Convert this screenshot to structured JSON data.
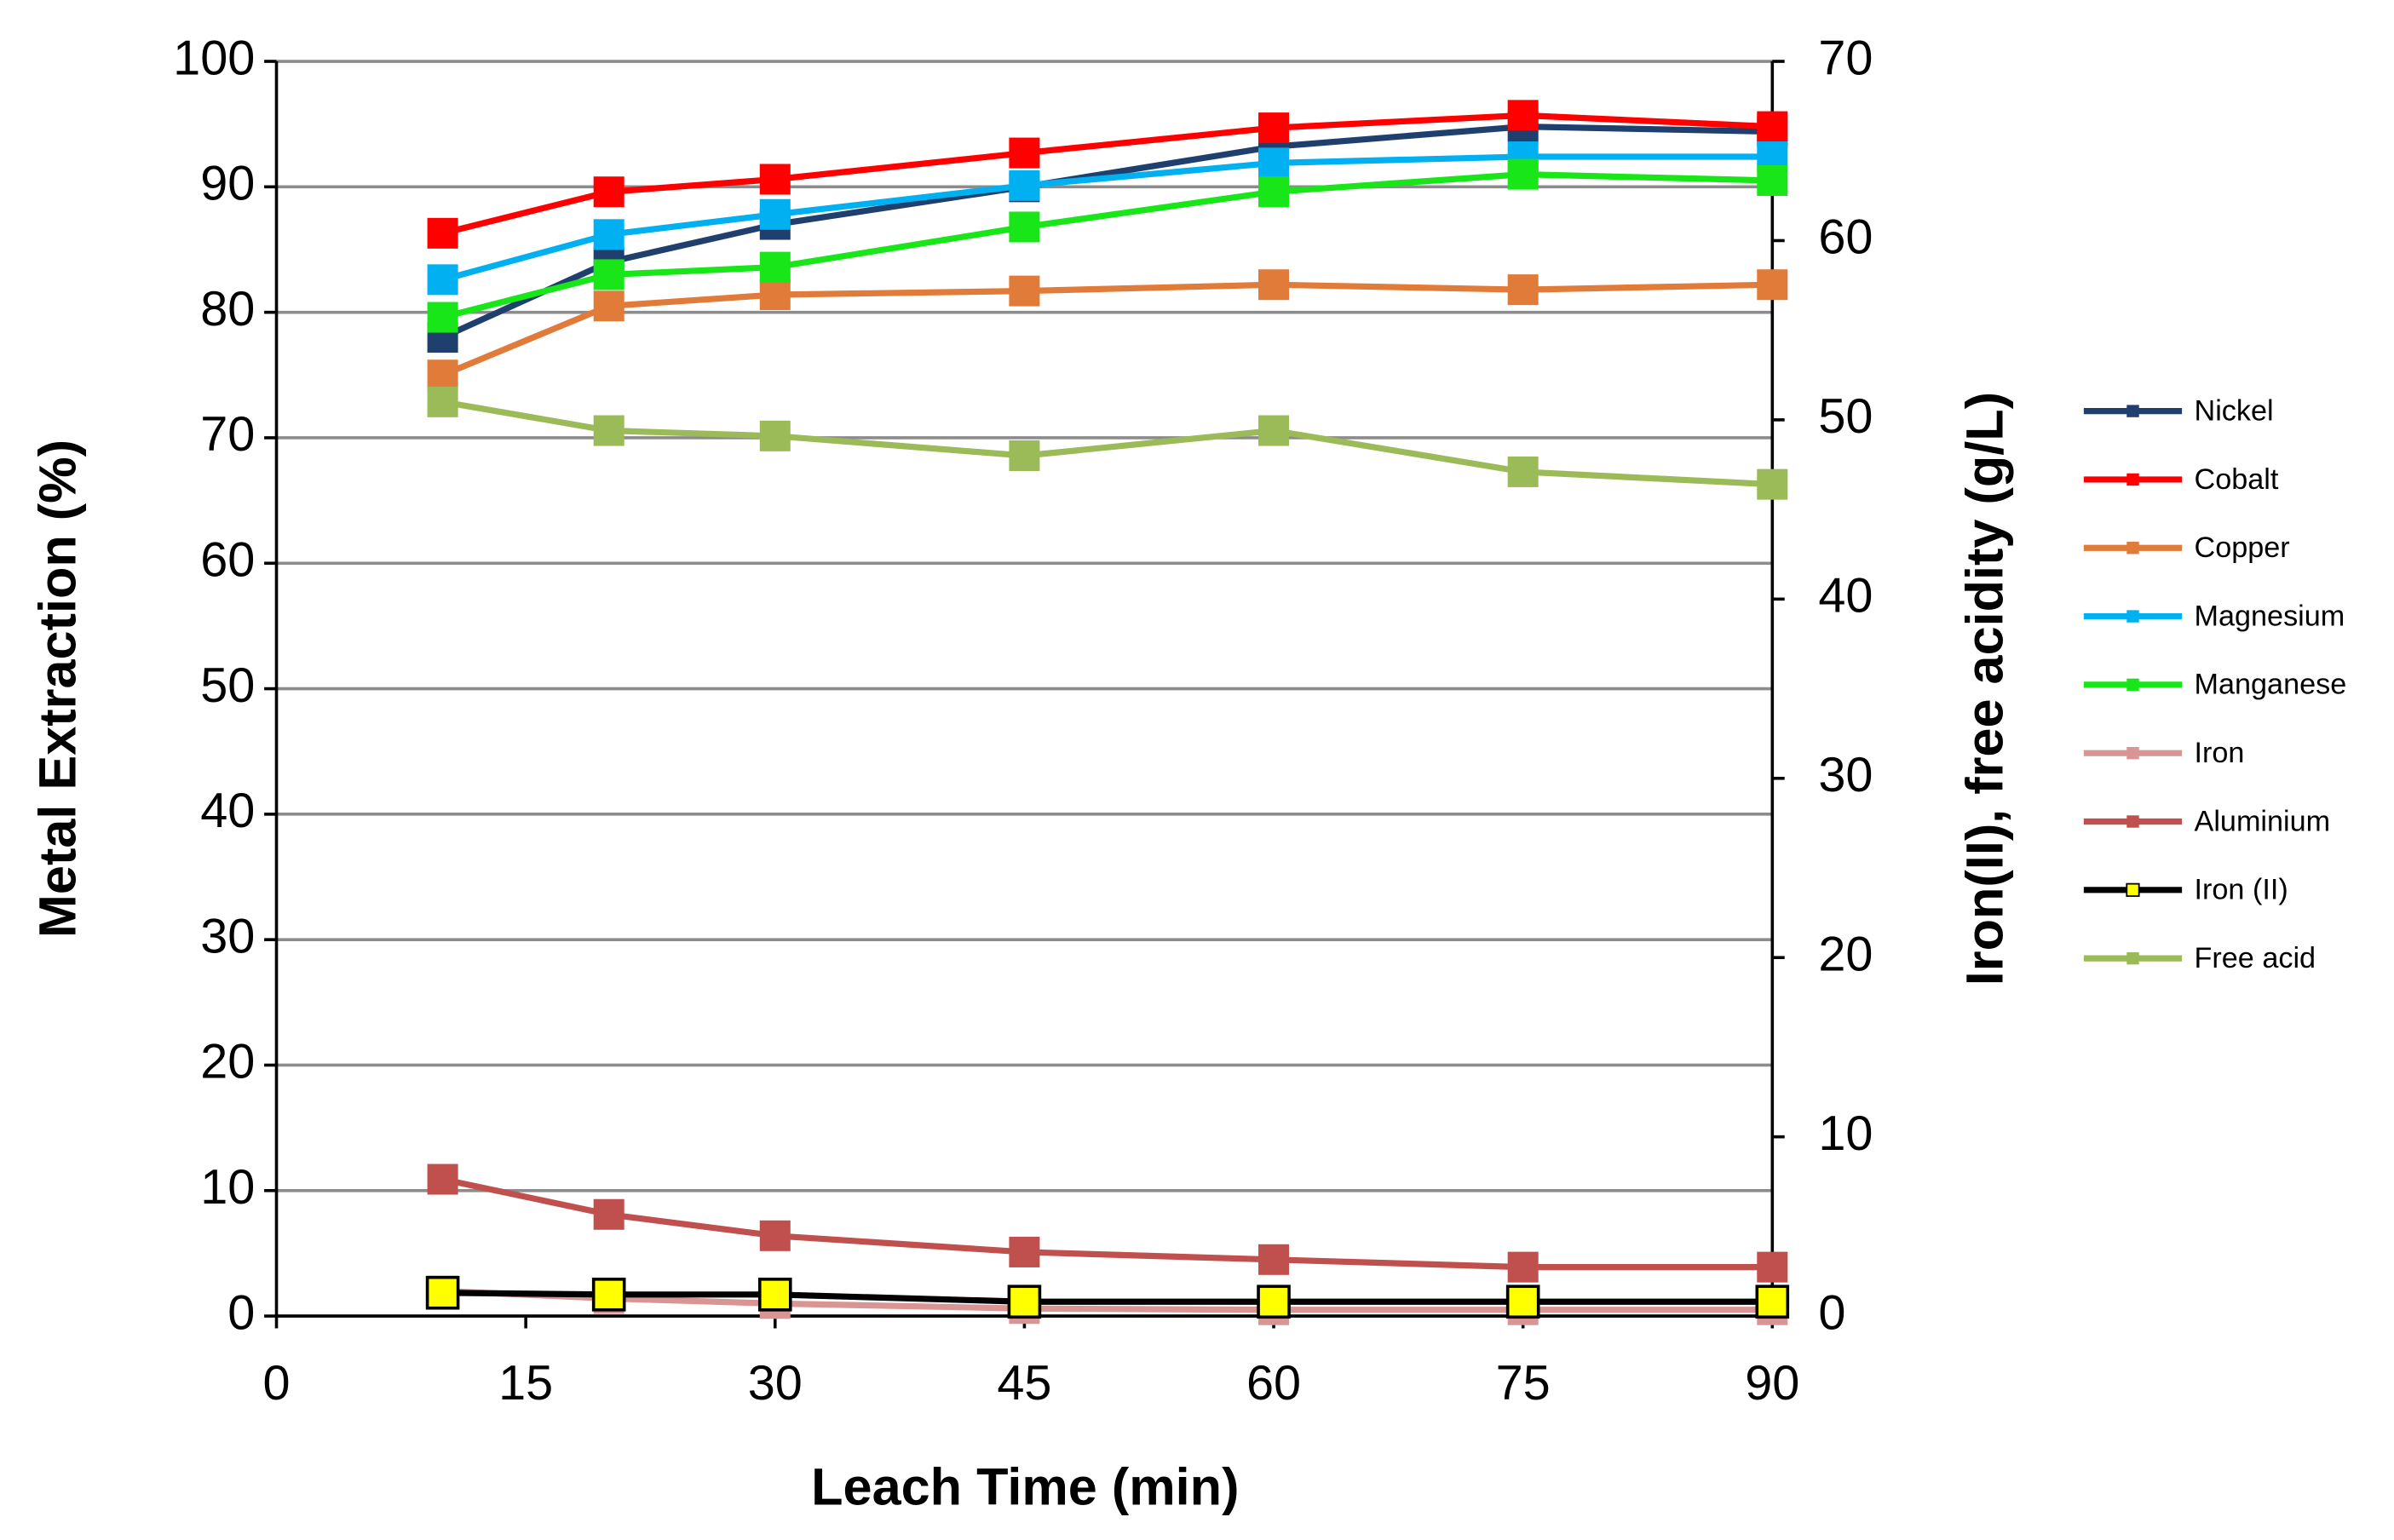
{
  "chart_data": {
    "type": "line",
    "xlabel": "Leach Time (min)",
    "ylabel": "Metal Extraction (%)",
    "y2label": "Iron(II),  free acidity (g/L)",
    "x": [
      10,
      20,
      30,
      45,
      60,
      75,
      90
    ],
    "xlim": [
      0,
      90
    ],
    "xticks": [
      0,
      15,
      30,
      45,
      60,
      75,
      90
    ],
    "ylim": [
      0,
      100
    ],
    "yticks": [
      0,
      10,
      20,
      30,
      40,
      50,
      60,
      70,
      80,
      90,
      100
    ],
    "y2lim": [
      0,
      70
    ],
    "y2ticks": [
      0,
      10,
      20,
      30,
      40,
      50,
      60,
      70
    ],
    "grid": true,
    "legend": "right",
    "series": [
      {
        "name": "Nickel",
        "color": "#1f3f6e",
        "values": [
          78,
          84,
          87,
          90,
          93.2,
          94.8,
          94.4
        ]
      },
      {
        "name": "Cobalt",
        "color": "#ff0000",
        "values": [
          86.3,
          89.6,
          90.6,
          92.7,
          94.7,
          95.7,
          94.8
        ]
      },
      {
        "name": "Copper",
        "color": "#e07b39",
        "values": [
          75,
          80.5,
          81.4,
          81.7,
          82.2,
          81.8,
          82.2
        ]
      },
      {
        "name": "Magnesium",
        "color": "#00b0f0",
        "values": [
          82.6,
          86.2,
          87.8,
          90.1,
          91.9,
          92.4,
          92.4
        ]
      },
      {
        "name": "Manganese",
        "color": "#19e619",
        "values": [
          79.6,
          83,
          83.6,
          86.8,
          89.6,
          91,
          90.5
        ]
      },
      {
        "name": "Iron",
        "color": "#d99594",
        "values": [
          2,
          1.4,
          1,
          0.6,
          0.5,
          0.5,
          0.5
        ]
      },
      {
        "name": "Aluminium",
        "color": "#c0504d",
        "values": [
          10.9,
          8.1,
          6.4,
          5.1,
          4.5,
          3.9,
          3.9
        ]
      },
      {
        "name": "Iron (II)",
        "color": "#000000",
        "marker_color": "#ffff00",
        "axis": "y2",
        "values": [
          1.3,
          1.2,
          1.2,
          0.8,
          0.8,
          0.8,
          0.8
        ]
      },
      {
        "name": "Free acid",
        "color": "#9bbb59",
        "axis": "y2",
        "values": [
          51,
          49.4,
          49.1,
          48,
          49.4,
          47.1,
          46.4
        ]
      }
    ]
  }
}
